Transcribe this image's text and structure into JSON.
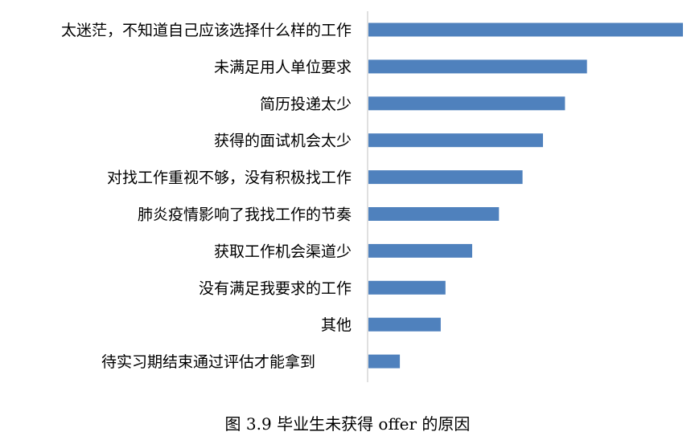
{
  "caption": "图 3.9  毕业生未获得 offer 的原因",
  "colors": {
    "bar": "#4f81bd",
    "axis": "#c0c0c0"
  },
  "chart_data": {
    "type": "bar",
    "orientation": "horizontal",
    "categories": [
      "太迷茫，不知道自己应该选择什么样的工作",
      "未满足用人单位要求",
      "简历投递太少",
      "获得的面试机会太少",
      "对找工作重视不够，没有积极找工作",
      "肺炎疫情影响了我找工作的节奏",
      "获取工作机会渠道少",
      "没有满足我要求的工作",
      "其他",
      "待实习期结束通过评估才能拿到"
    ],
    "values": [
      100,
      69.5,
      62.5,
      55.5,
      49,
      41.5,
      33,
      24.5,
      23,
      10
    ],
    "xlim": [
      0,
      100
    ],
    "grid": false,
    "legend": false
  }
}
